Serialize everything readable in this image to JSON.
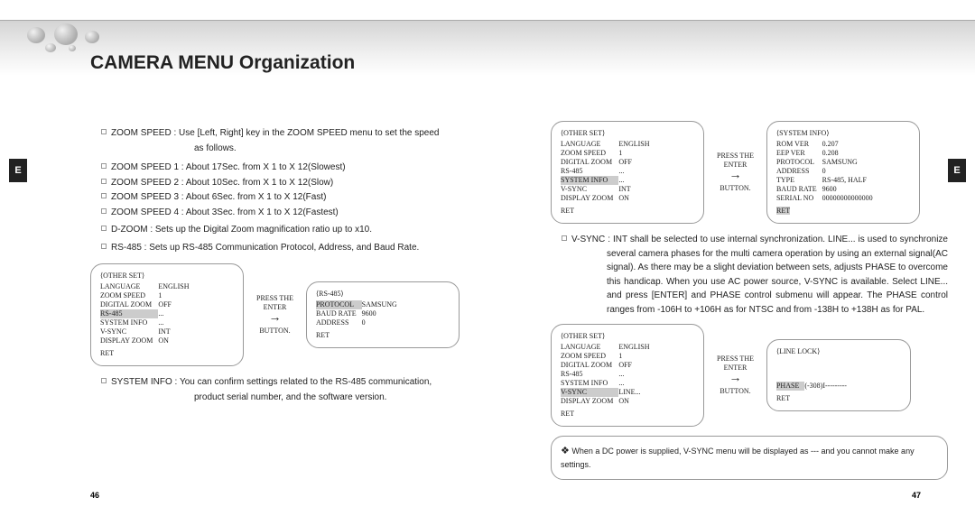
{
  "title": "CAMERA MENU Organization",
  "tab": "E",
  "page_left": "46",
  "page_right": "47",
  "left": {
    "b1_label": "ZOOM SPEED :",
    "b1_text": "Use [Left, Right] key in the ZOOM SPEED menu to set the speed",
    "b1_cont": "as follows.",
    "b2": "ZOOM SPEED 1 : About 17Sec. from X 1 to X 12(Slowest)",
    "b3": "ZOOM SPEED 2 : About 10Sec. from X 1 to X 12(Slow)",
    "b4": "ZOOM SPEED 3 : About 6Sec. from X 1 to X 12(Fast)",
    "b5": "ZOOM SPEED 4 : About 3Sec. from X 1 to X 12(Fastest)",
    "b6_label": "D-ZOOM :",
    "b6_text": "Sets up the Digital Zoom magnification ratio up to x10.",
    "b7_label": "RS-485 :",
    "b7_text": "Sets up RS-485 Communication Protocol, Address, and Baud Rate.",
    "b8_label": "SYSTEM INFO :",
    "b8_text": "You can confirm settings related to the RS-485 communication,",
    "b8_cont": "product serial number, and the software version."
  },
  "arrow": {
    "l1": "PRESS THE",
    "l2": "ENTER",
    "l3": "BUTTON."
  },
  "other_set_hdr": "⟨OTHER SET⟩",
  "rs485_hdr": "⟨RS-485⟩",
  "sysinfo_hdr": "⟨SYSTEM INFO⟩",
  "linelock_hdr": "⟨LINE LOCK⟩",
  "ret": "RET",
  "os1": {
    "r": [
      [
        "LANGUAGE",
        "ENGLISH"
      ],
      [
        "ZOOM SPEED",
        "1"
      ],
      [
        "DIGITAL ZOOM",
        "OFF"
      ],
      [
        "RS-485",
        "..."
      ],
      [
        "SYSTEM INFO",
        "..."
      ],
      [
        "V-SYNC",
        "INT"
      ],
      [
        "DISPLAY ZOOM",
        "ON"
      ]
    ],
    "hl": 3
  },
  "rs485": {
    "r": [
      [
        "PROTOCOL",
        "SAMSUNG"
      ],
      [
        "BAUD RATE",
        "9600"
      ],
      [
        "ADDRESS",
        "0"
      ]
    ],
    "hl": 0
  },
  "os2": {
    "r": [
      [
        "LANGUAGE",
        "ENGLISH"
      ],
      [
        "ZOOM SPEED",
        "1"
      ],
      [
        "DIGITAL ZOOM",
        "OFF"
      ],
      [
        "RS-485",
        "..."
      ],
      [
        "SYSTEM INFO",
        "..."
      ],
      [
        "V-SYNC",
        "INT"
      ],
      [
        "DISPLAY ZOOM",
        "ON"
      ]
    ],
    "hl": 4
  },
  "sysinfo": {
    "r": [
      [
        "ROM VER",
        "0.207"
      ],
      [
        "EEP VER",
        "0.208"
      ],
      [
        "PROTOCOL",
        "SAMSUNG"
      ],
      [
        "ADDRESS",
        "0"
      ],
      [
        "TYPE",
        "RS-485, HALF"
      ],
      [
        "BAUD RATE",
        "9600"
      ],
      [
        "SERIAL NO",
        "00000000000000"
      ]
    ],
    "ret_hl": true
  },
  "os3": {
    "r": [
      [
        "LANGUAGE",
        "ENGLISH"
      ],
      [
        "ZOOM SPEED",
        "1"
      ],
      [
        "DIGITAL ZOOM",
        "OFF"
      ],
      [
        "RS-485",
        "..."
      ],
      [
        "SYSTEM INFO",
        "..."
      ],
      [
        "V-SYNC",
        "LINE..."
      ],
      [
        "DISPLAY ZOOM",
        "ON"
      ]
    ],
    "hl": 5
  },
  "linelock": {
    "r": [
      [
        "PHASE",
        "(-308)I---------"
      ]
    ],
    "hl": 0
  },
  "right": {
    "b1_label": "V-SYNC :",
    "b1_text": "INT shall be selected to use internal synchronization. LINE... is used to synchronize several camera phases for the multi camera operation by using an external signal(AC signal). As there may be a slight deviation between sets, adjusts PHASE to overcome this handicap. When you use AC power source, V-SYNC is available. Select LINE... and press [ENTER] and PHASE control submenu will appear. The PHASE control ranges from -106H to +106H as for NTSC and from -138H to +138H as for PAL."
  },
  "note": "When a DC power is supplied, V-SYNC menu will be displayed as --- and you cannot make any settings."
}
